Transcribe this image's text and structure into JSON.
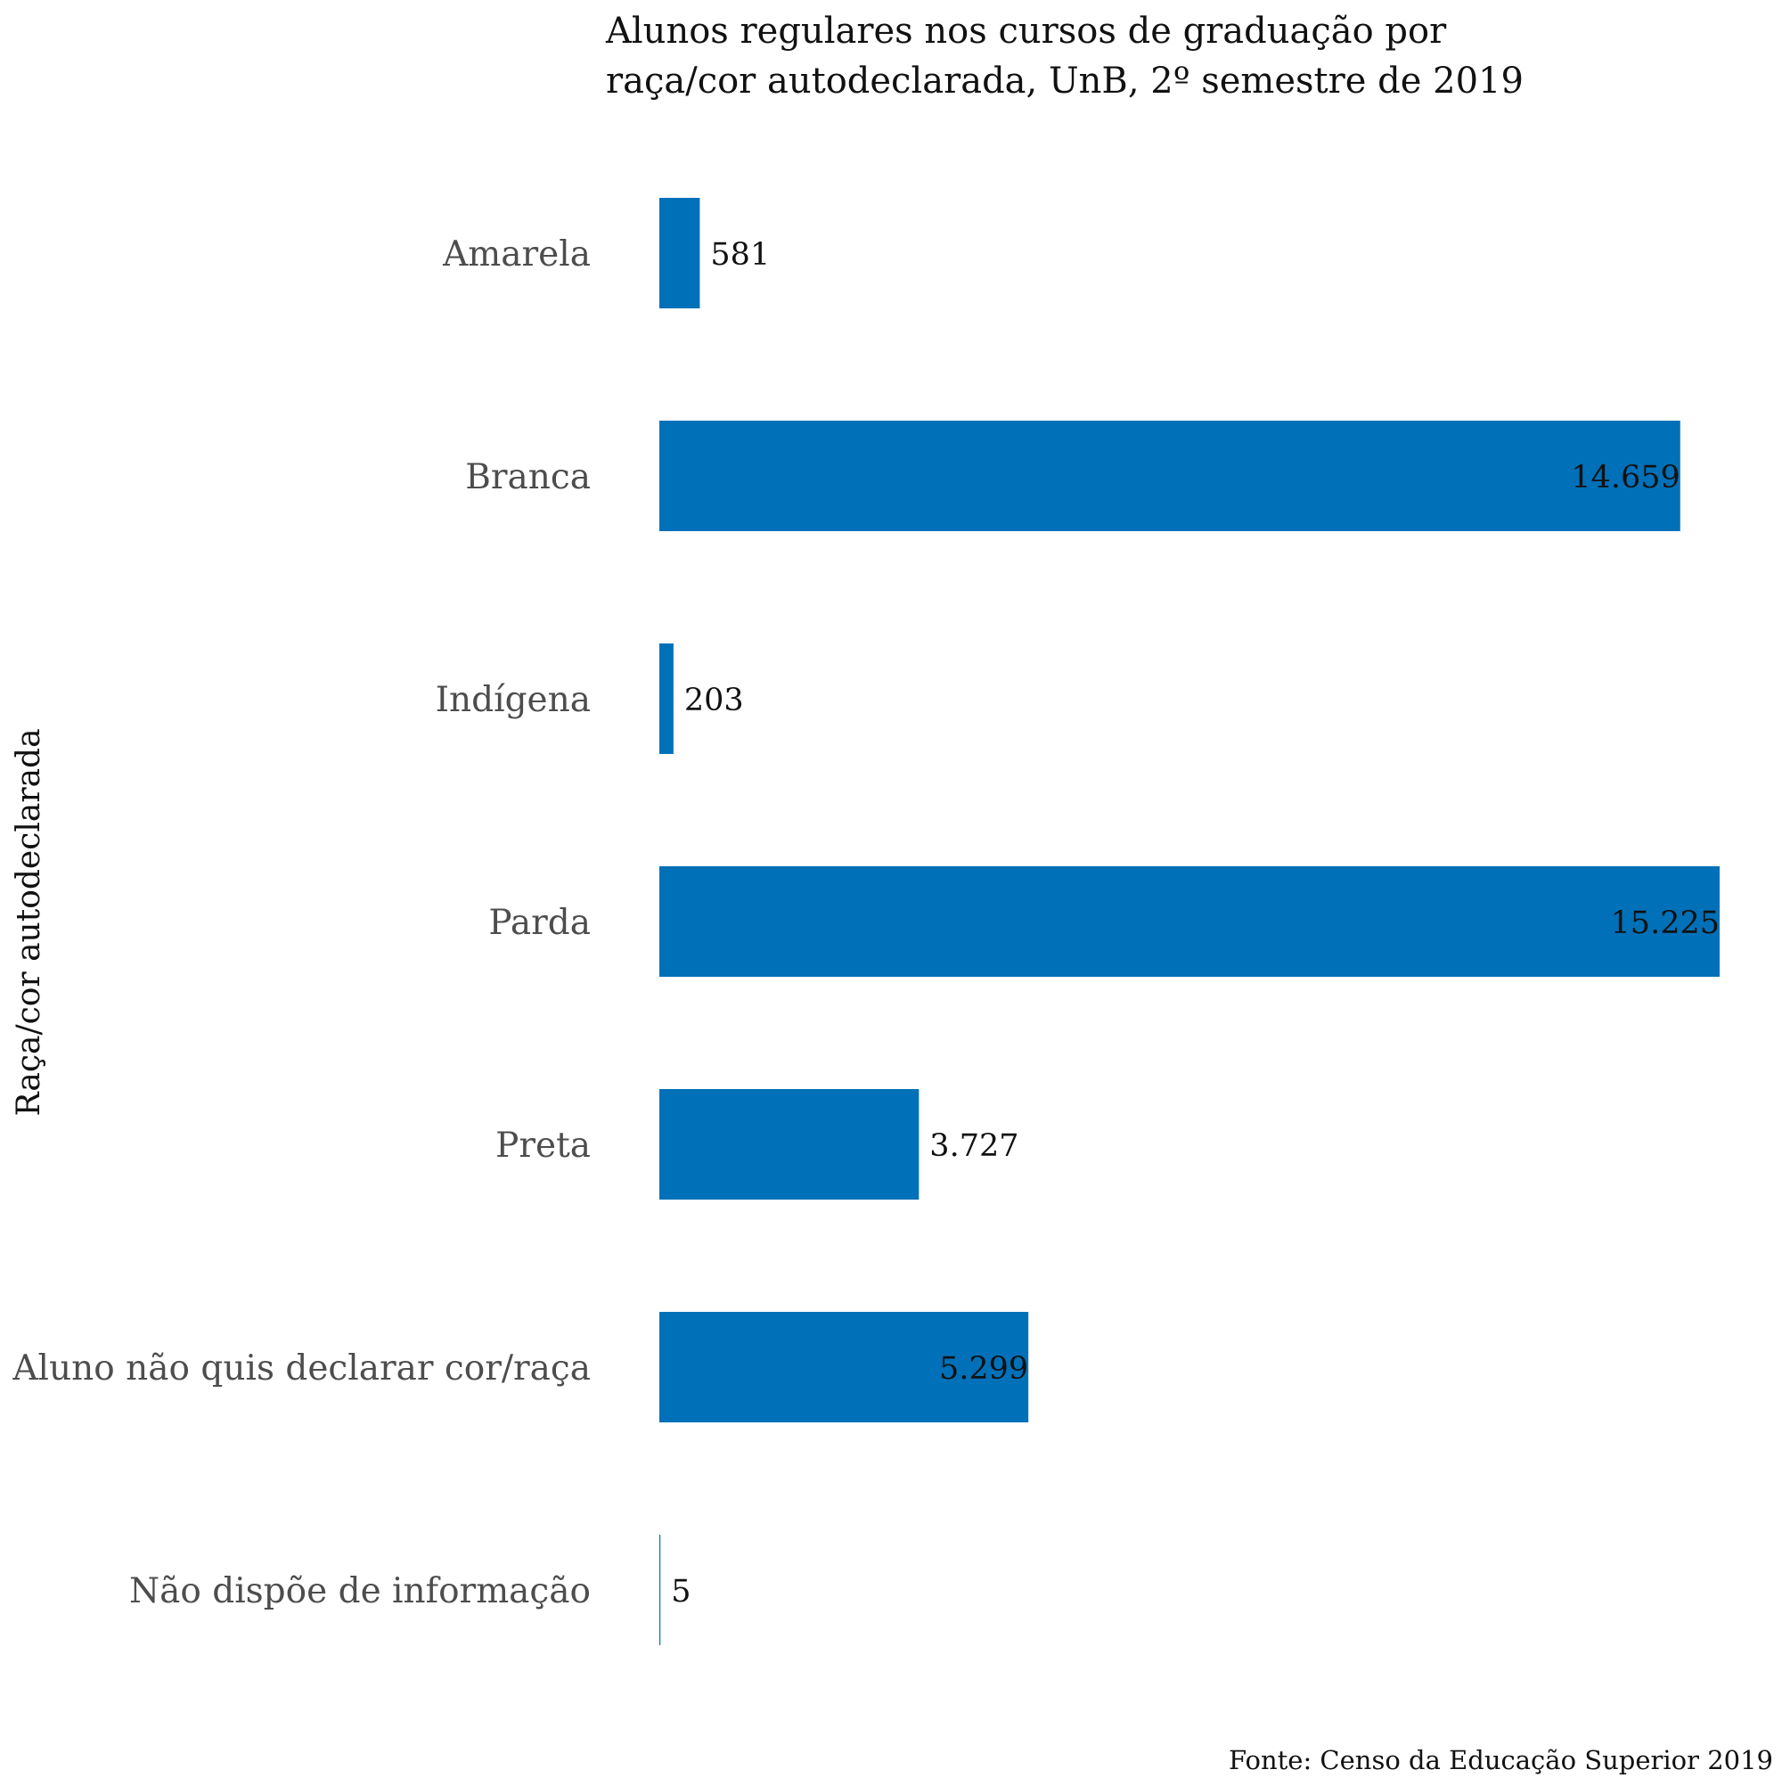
{
  "chart_data": {
    "type": "bar",
    "orientation": "horizontal",
    "title": [
      "Alunos regulares nos cursos de graduação por",
      "raça/cor autodeclarada, UnB, 2º semestre de 2019"
    ],
    "ylabel": "Raça/cor autodeclarada",
    "xlabel": "",
    "caption": "Fonte: Censo da Educação Superior 2019",
    "categories": [
      "Amarela",
      "Branca",
      "Indígena",
      "Parda",
      "Preta",
      "Aluno não quis declarar cor/raça",
      "Não dispõe de informação"
    ],
    "values": [
      581,
      14659,
      203,
      15225,
      3727,
      5299,
      5
    ],
    "value_labels": [
      "581",
      "14.659",
      "203",
      "15.225",
      "3.727",
      "5.299",
      "5"
    ],
    "xlim": [
      0,
      15225
    ],
    "grid": false,
    "legend": "none",
    "bar_color": "#0070B8"
  }
}
